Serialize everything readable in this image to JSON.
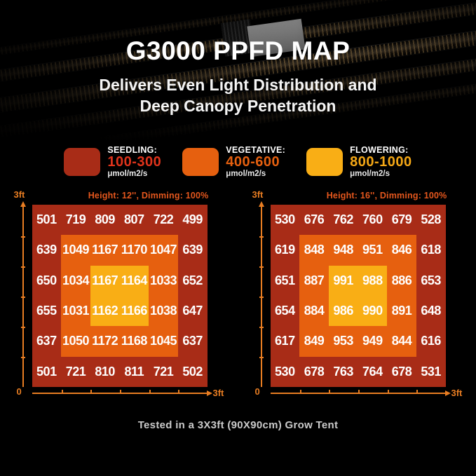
{
  "hero": {
    "title": "G3000 PPFD MAP",
    "subtitle_line1": "Delivers Even Light Distribution and",
    "subtitle_line2": "Deep Canopy Penetration"
  },
  "legend": {
    "items": [
      {
        "label": "SEEDLING:",
        "range": "100-300",
        "unit": "μmol/m2/s",
        "color": "#a82c17",
        "range_color": "#e0331b"
      },
      {
        "label": "VEGETATIVE:",
        "range": "400-600",
        "unit": "μmol/m2/s",
        "color": "#e6600f",
        "range_color": "#e6600f"
      },
      {
        "label": "FLOWERING:",
        "range": "800-1000",
        "unit": "μmol/m2/s",
        "color": "#f9ae15",
        "range_color": "#f5a816"
      }
    ]
  },
  "chart_data": [
    {
      "type": "heatmap",
      "header": "Height: 12'', Dimming: 100%",
      "y_axis_label": "3ft",
      "origin_label": "0",
      "x_axis_label": "3ft",
      "x_range": [
        0,
        3
      ],
      "y_range": [
        0,
        3
      ],
      "unit": "μmol/m2/s",
      "values": [
        [
          501,
          719,
          809,
          807,
          722,
          499
        ],
        [
          639,
          1049,
          1167,
          1170,
          1047,
          639
        ],
        [
          650,
          1034,
          1167,
          1164,
          1033,
          652
        ],
        [
          655,
          1031,
          1162,
          1166,
          1038,
          647
        ],
        [
          637,
          1050,
          1172,
          1168,
          1045,
          637
        ],
        [
          501,
          721,
          810,
          811,
          721,
          502
        ]
      ],
      "zone_colors": {
        "outer": "#a82c17",
        "middle": "#e6600f",
        "inner": "#f9ae15"
      }
    },
    {
      "type": "heatmap",
      "header": "Height: 16'', Dimming: 100%",
      "y_axis_label": "3ft",
      "origin_label": "0",
      "x_axis_label": "3ft",
      "x_range": [
        0,
        3
      ],
      "y_range": [
        0,
        3
      ],
      "unit": "μmol/m2/s",
      "values": [
        [
          530,
          676,
          762,
          760,
          679,
          528
        ],
        [
          619,
          848,
          948,
          951,
          846,
          618
        ],
        [
          651,
          887,
          991,
          988,
          886,
          653
        ],
        [
          654,
          884,
          986,
          990,
          891,
          648
        ],
        [
          617,
          849,
          953,
          949,
          844,
          616
        ],
        [
          530,
          678,
          763,
          764,
          678,
          531
        ]
      ],
      "zone_colors": {
        "outer": "#a82c17",
        "middle": "#e6600f",
        "inner": "#f9ae15"
      }
    }
  ],
  "footer": {
    "note": "Tested in a 3X3ft (90X90cm) Grow Tent"
  }
}
